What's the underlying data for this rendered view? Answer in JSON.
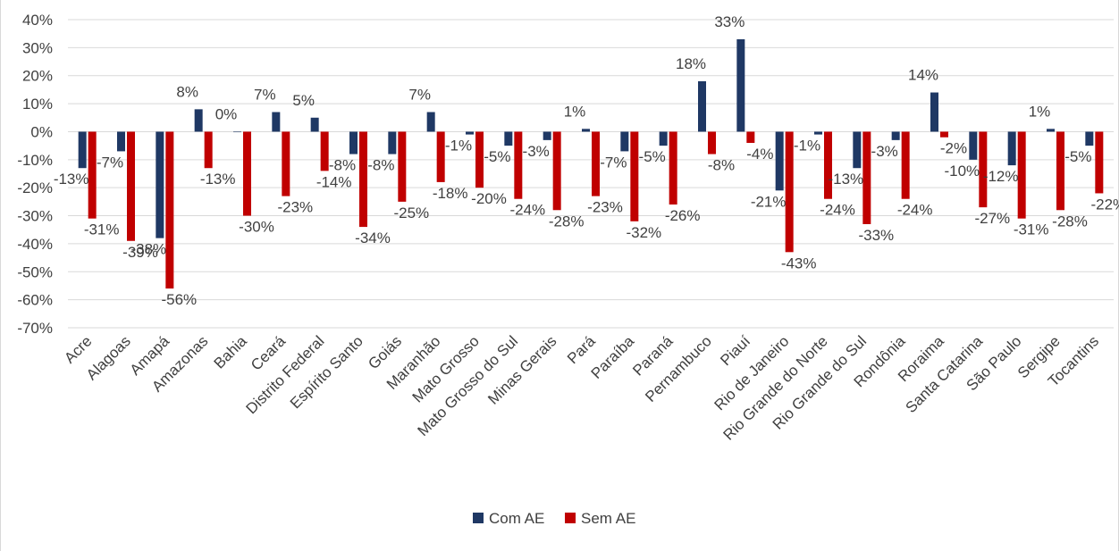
{
  "chart_data": {
    "type": "bar",
    "categories": [
      "Acre",
      "Alagoas",
      "Amapá",
      "Amazonas",
      "Bahia",
      "Ceará",
      "Distrito Federal",
      "Espírito Santo",
      "Goiás",
      "Maranhão",
      "Mato Grosso",
      "Mato Grosso do Sul",
      "Minas Gerais",
      "Pará",
      "Paraíba",
      "Paraná",
      "Pernambuco",
      "Piauí",
      "Rio de Janeiro",
      "Rio Grande do Norte",
      "Rio Grande do Sul",
      "Rondônia",
      "Roraima",
      "Santa Catarina",
      "São Paulo",
      "Sergipe",
      "Tocantins"
    ],
    "series": [
      {
        "name": "Com AE",
        "color": "#1f3864",
        "values": [
          -13,
          -7,
          -38,
          8,
          0,
          7,
          5,
          -8,
          -8,
          7,
          -1,
          -5,
          -3,
          1,
          -7,
          -5,
          18,
          33,
          -21,
          -1,
          -13,
          -3,
          14,
          -10,
          -12,
          1,
          -5
        ]
      },
      {
        "name": "Sem AE",
        "color": "#c00000",
        "values": [
          -31,
          -39,
          -56,
          -13,
          -30,
          -23,
          -14,
          -34,
          -25,
          -18,
          -20,
          -24,
          -28,
          -23,
          -32,
          -26,
          -8,
          -4,
          -43,
          -24,
          -33,
          -24,
          -2,
          -27,
          -31,
          -28,
          -22
        ]
      }
    ],
    "ylim": [
      -70,
      40
    ],
    "yticks": [
      40,
      30,
      20,
      10,
      0,
      -10,
      -20,
      -30,
      -40,
      -50,
      -60,
      -70
    ],
    "value_format": "percent",
    "grid": true,
    "legend": "bottom-center",
    "title": "",
    "xlabel": "",
    "ylabel": ""
  }
}
